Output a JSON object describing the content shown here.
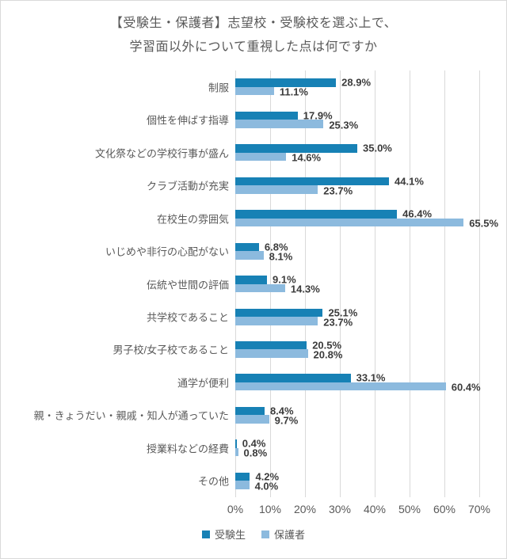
{
  "figure": {
    "title_line1": "【受験生・保護者】志望校・受験校を選ぶ上で、",
    "title_line2": "学習面以外について重視した点は何ですか"
  },
  "chart_data": {
    "type": "bar",
    "orientation": "horizontal",
    "title": "【受験生・保護者】志望校・受験校を選ぶ上で、学習面以外について重視した点は何ですか",
    "categories": [
      "制服",
      "個性を伸ばす指導",
      "文化祭などの学校行事が盛ん",
      "クラブ活動が充実",
      "在校生の雰囲気",
      "いじめや非行の心配がない",
      "伝統や世間の評価",
      "共学校であること",
      "男子校/女子校であること",
      "通学が便利",
      "親・きょうだい・親戚・知人が通っていた",
      "授業料などの経費",
      "その他"
    ],
    "series": [
      {
        "name": "受験生",
        "color": "#1781b5",
        "values": [
          28.9,
          17.9,
          35.0,
          44.1,
          46.4,
          6.8,
          9.1,
          25.1,
          20.5,
          33.1,
          8.4,
          0.4,
          4.2
        ]
      },
      {
        "name": "保護者",
        "color": "#8cbade",
        "values": [
          11.1,
          25.3,
          14.6,
          23.7,
          65.5,
          8.1,
          14.3,
          23.7,
          20.8,
          60.4,
          9.7,
          0.8,
          4.0
        ]
      }
    ],
    "value_label_suffix": "%",
    "x_ticks": [
      "0%",
      "10%",
      "20%",
      "30%",
      "40%",
      "50%",
      "60%",
      "70%"
    ],
    "xlim": [
      0,
      70
    ],
    "grid": true,
    "legend_position": "bottom",
    "colors": {
      "grid": "#d9d9d9",
      "axis_text": "#595959",
      "value_label": "#3b3b3b",
      "border": "#d9d9d9",
      "background": "#ffffff"
    }
  }
}
